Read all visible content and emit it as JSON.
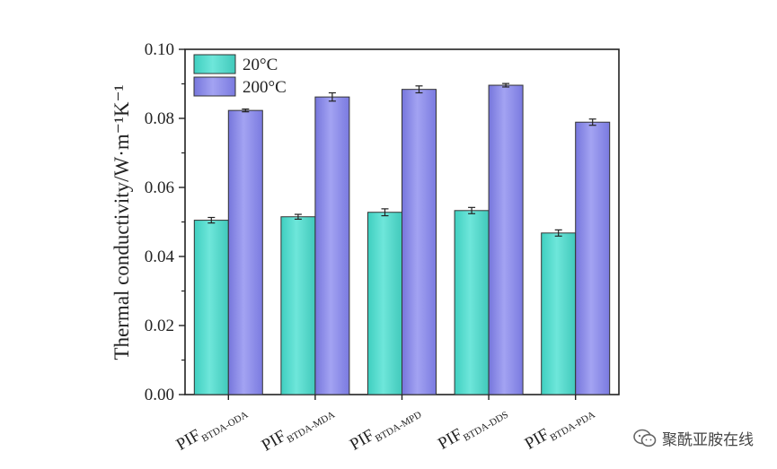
{
  "chart_data": {
    "type": "bar",
    "ylabel": "Thermal conductivity/W·m⁻¹K⁻¹",
    "ylim": [
      0,
      0.1
    ],
    "yticks": [
      "0.00",
      "0.02",
      "0.04",
      "0.06",
      "0.08",
      "0.10"
    ],
    "categories": [
      {
        "main": "PIF",
        "sub": "BTDA-ODA"
      },
      {
        "main": "PIF",
        "sub": "BTDA-MDA"
      },
      {
        "main": "PIF",
        "sub": "BTDA-MPD"
      },
      {
        "main": "PIF",
        "sub": "BTDA-DDS"
      },
      {
        "main": "PIF",
        "sub": "BTDA-PDA"
      }
    ],
    "series": [
      {
        "name": "20°C",
        "color": "#4fd6c8",
        "values": [
          0.0505,
          0.0515,
          0.0528,
          0.0533,
          0.0468
        ],
        "errors": [
          0.0008,
          0.0007,
          0.001,
          0.0009,
          0.0009
        ]
      },
      {
        "name": "200°C",
        "color": "#8686e6",
        "values": [
          0.0823,
          0.0862,
          0.0884,
          0.0896,
          0.0789
        ],
        "errors": [
          0.0004,
          0.0012,
          0.001,
          0.0005,
          0.0009
        ]
      }
    ],
    "legend_position": "top-left",
    "grid": false
  },
  "watermark": {
    "icon": "wechat-icon",
    "text": "聚酰亚胺在线"
  }
}
